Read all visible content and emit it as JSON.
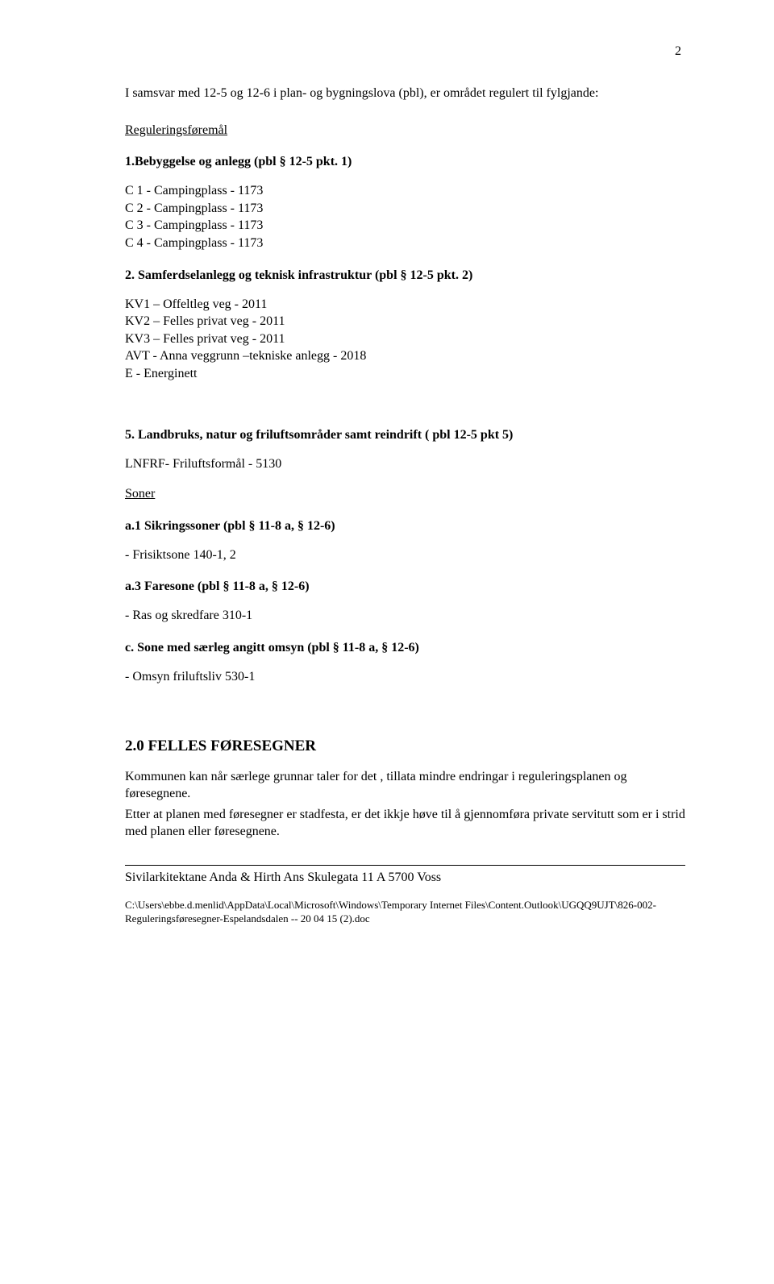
{
  "page_number": "2",
  "intro": {
    "line1": "I samsvar med 12-5 og 12-6 i plan- og bygningslova (pbl), er området regulert til fylgjande:",
    "heading": "Reguleringsføremål"
  },
  "section1": {
    "heading": "1.Bebyggelse og anlegg (pbl § 12-5 pkt. 1)",
    "items": [
      "C 1  -  Campingplass - 1173",
      "C 2  -  Campingplass - 1173",
      "C 3  -  Campingplass - 1173",
      "C 4  -  Campingplass - 1173"
    ]
  },
  "section2": {
    "heading": "2. Samferdselanlegg og teknisk infrastruktur (pbl § 12-5 pkt. 2)",
    "items": [
      "KV1   – Offeltleg veg - 2011",
      "KV2   – Felles privat veg - 2011",
      "KV3   – Felles privat veg - 2011",
      "AVT  -  Anna veggrunn –tekniske anlegg - 2018",
      "E       -   Energinett"
    ]
  },
  "section5": {
    "heading": "5. Landbruks, natur og friluftsområder samt reindrift ( pbl 12-5 pkt 5)",
    "line": "LNFRF- Friluftsformål - 5130"
  },
  "soner_heading": "Soner",
  "soner_a1": {
    "heading": "a.1  Sikringssoner  (pbl § 11-8 a, § 12-6)",
    "item": "-  Frisiktsone 140-1, 2"
  },
  "soner_a3": {
    "heading": "a.3  Faresone  (pbl § 11-8 a, § 12-6)",
    "item": "-  Ras og skredfare 310-1"
  },
  "soner_c": {
    "heading": "c.  Sone med særleg angitt omsyn  (pbl § 11-8 a, § 12-6)",
    "item": "-  Omsyn friluftsliv  530-1"
  },
  "felles": {
    "heading": "2.0 FELLES FØRESEGNER",
    "para1": "Kommunen kan når særlege grunnar taler for det , tillata mindre endringar i reguleringsplanen og føresegnene.",
    "para2": "Etter at planen med føresegner er stadfesta, er det ikkje høve til å gjennomføra private servitutt som er i strid med planen eller føresegnene."
  },
  "footer": {
    "line": "Sivilarkitektane  Anda & Hirth Ans  Skulegata 11 A   5700 Voss",
    "path": "C:\\Users\\ebbe.d.menlid\\AppData\\Local\\Microsoft\\Windows\\Temporary Internet Files\\Content.Outlook\\UGQQ9UJT\\826-002-Reguleringsføresegner-Espelandsdalen -- 20 04 15 (2).doc"
  },
  "colors": {
    "background": "#ffffff",
    "text": "#000000"
  },
  "typography": {
    "body_font": "Times New Roman",
    "body_size_pt": 12,
    "big_heading_size_pt": 14
  }
}
